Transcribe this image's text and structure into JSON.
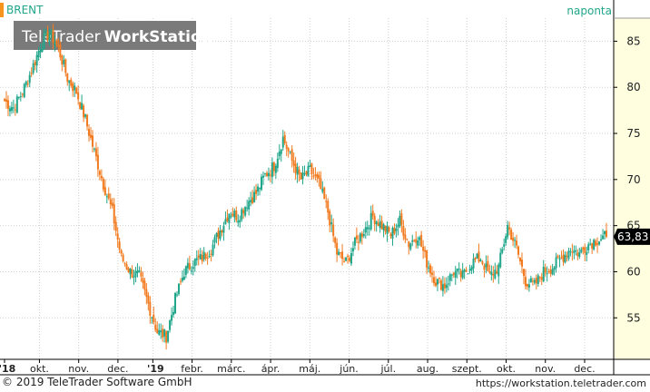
{
  "app": {
    "symbol": "BRENT",
    "interval": "naponta",
    "watermark_brand_light": "TeleTrader",
    "watermark_brand_bold": "WorkStation",
    "footer_left": "© 2019 TeleTrader Software GmbH",
    "footer_right": "https://workstation.teletrader.com"
  },
  "colors": {
    "up": "#20a68a",
    "down": "#f27a1f",
    "axis_bg": "#ffffe0",
    "grid": "#cfcfcf",
    "price_tag_bg": "#000000",
    "symbol_marker": "#f7941d"
  },
  "chart_data": {
    "type": "candlestick",
    "title": "BRENT",
    "interval": "naponta",
    "last_price_label": "63,83",
    "y_ticks": [
      "85",
      "80",
      "75",
      "70",
      "65",
      "60",
      "55"
    ],
    "y_tick_values": [
      85,
      80,
      75,
      70,
      65,
      60,
      55
    ],
    "ylim": [
      50.5,
      87.5
    ],
    "x_ticks": [
      "'18",
      "okt.",
      "nov.",
      "dec.",
      "'19",
      "febr.",
      "márc.",
      "ápr.",
      "máj.",
      "jún.",
      "júl.",
      "aug.",
      "szept.",
      "okt.",
      "nov.",
      "dec."
    ],
    "x_tick_positions": [
      0,
      4,
      8.5,
      13,
      17,
      21.5,
      26,
      30.5,
      35,
      39.5,
      44,
      48.5,
      53,
      57.5,
      62,
      66.5
    ],
    "x_range": [
      0,
      69
    ],
    "grid": true,
    "series": [
      {
        "name": "BRENT",
        "approx_close_by_week": [
          78.5,
          77.8,
          79.5,
          81.8,
          84.5,
          86.0,
          84.2,
          81.0,
          79.5,
          76.5,
          73.0,
          69.5,
          66.5,
          61.5,
          60.0,
          59.5,
          56.5,
          53.5,
          53.0,
          57.0,
          60.0,
          61.0,
          61.5,
          62.5,
          64.5,
          66.5,
          66.0,
          67.5,
          68.5,
          70.5,
          71.5,
          74.5,
          72.0,
          70.0,
          71.0,
          69.5,
          66.5,
          62.0,
          61.0,
          63.0,
          64.5,
          66.0,
          65.0,
          64.0,
          65.5,
          63.0,
          64.0,
          61.0,
          59.0,
          58.5,
          60.0,
          59.5,
          61.0,
          61.5,
          59.5,
          60.5,
          65.0,
          62.5,
          59.0,
          58.5,
          60.0,
          60.5,
          61.5,
          62.5,
          62.0,
          63.0,
          63.5,
          63.8
        ]
      }
    ]
  }
}
